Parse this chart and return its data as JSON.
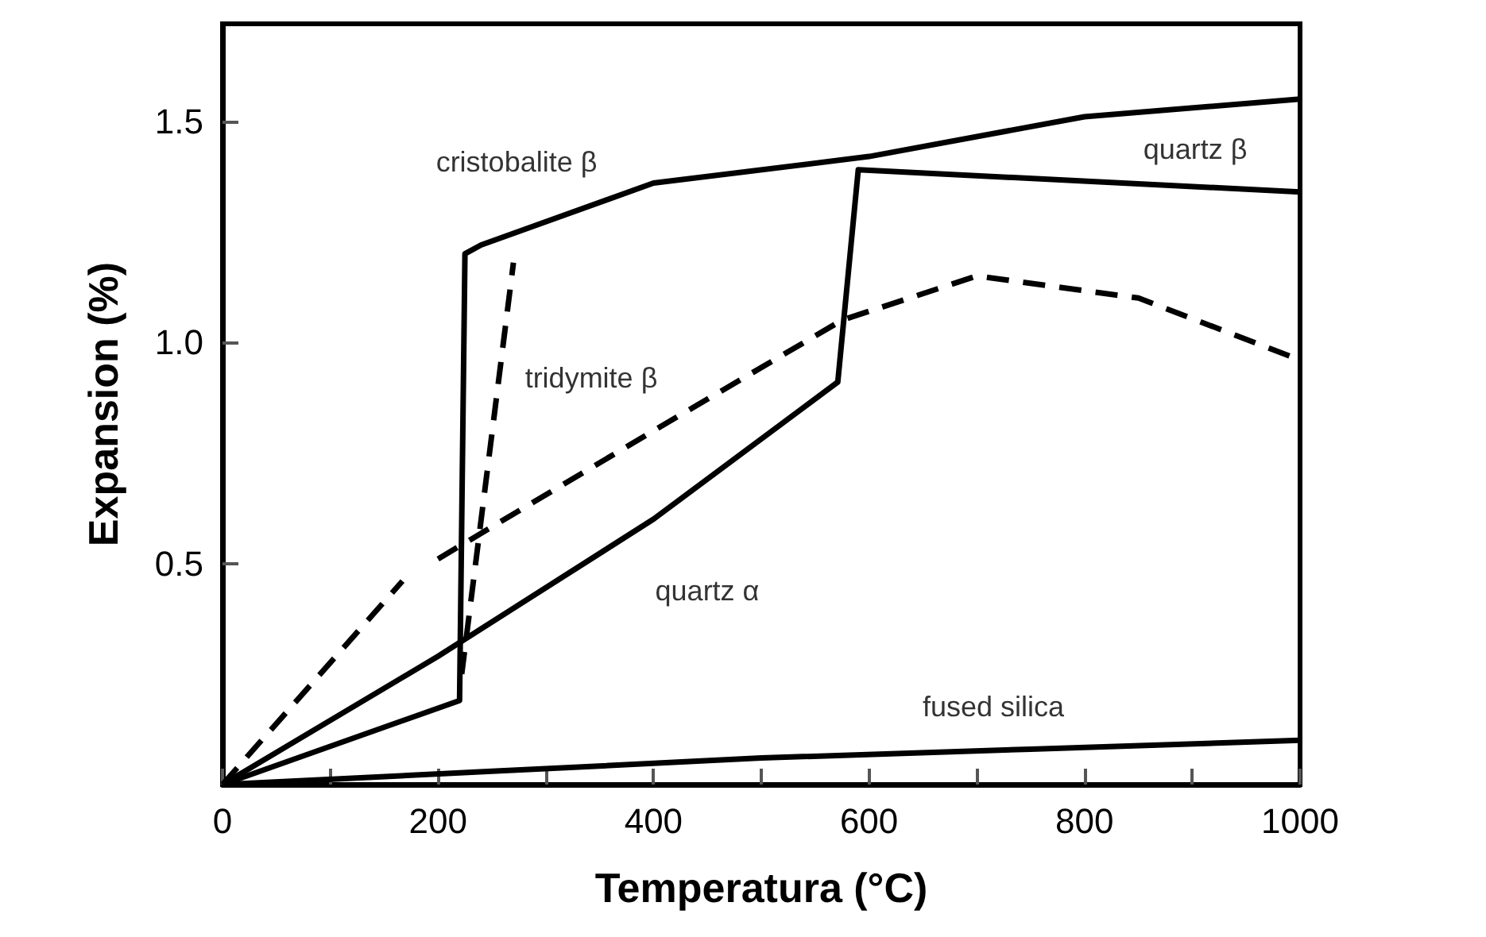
{
  "chart_data": {
    "type": "line",
    "xlabel": "Temperatura (°C)",
    "ylabel": "Expansion (%)",
    "xlim": [
      0,
      1000
    ],
    "ylim": [
      0,
      1.72
    ],
    "xticks": [
      0,
      {
        "value": 100,
        "label": null
      },
      200,
      {
        "value": 300,
        "label": null
      },
      400,
      {
        "value": 500,
        "label": null
      },
      600,
      {
        "value": 700,
        "label": null
      },
      800,
      {
        "value": 900,
        "label": null
      },
      1000
    ],
    "yticks": [
      0.5,
      {
        "value": 1,
        "label": "1.0"
      },
      1.5
    ],
    "grid": false,
    "marker": "none",
    "series": [
      {
        "color": "#000000",
        "line_style": "solid",
        "x": [
          0,
          220,
          225,
          240,
          400,
          600,
          800,
          1000
        ],
        "values": [
          0,
          0.19,
          1.2,
          1.22,
          1.36,
          1.42,
          1.51,
          1.55
        ]
      },
      {
        "color": "#000000",
        "line_style": "solid",
        "x": [
          0,
          200,
          400,
          571,
          590,
          1000
        ],
        "values": [
          0,
          0.29,
          0.6,
          0.91,
          1.39,
          1.34
        ]
      },
      {
        "color": "#000000",
        "line_style": "dashed",
        "x": [
          0,
          167
        ],
        "values": [
          0,
          0.46
        ]
      },
      {
        "color": "#000000",
        "line_style": "dashed",
        "x": [
          222,
          270
        ],
        "values": [
          0.25,
          1.18
        ]
      },
      {
        "color": "#000000",
        "line_style": "dashed",
        "x": [
          200,
          400,
          575,
          700,
          850,
          1000
        ],
        "values": [
          0.51,
          0.8,
          1.05,
          1.15,
          1.1,
          0.96
        ]
      },
      {
        "color": "#000000",
        "line_style": "solid",
        "x": [
          0,
          250,
          500,
          750,
          1000
        ],
        "values": [
          0,
          0.03,
          0.06,
          0.08,
          0.1
        ]
      }
    ],
    "annotations": [
      "cristobalite β",
      "quartz β",
      "tridymite β",
      "quartz α",
      "fused silica"
    ]
  }
}
